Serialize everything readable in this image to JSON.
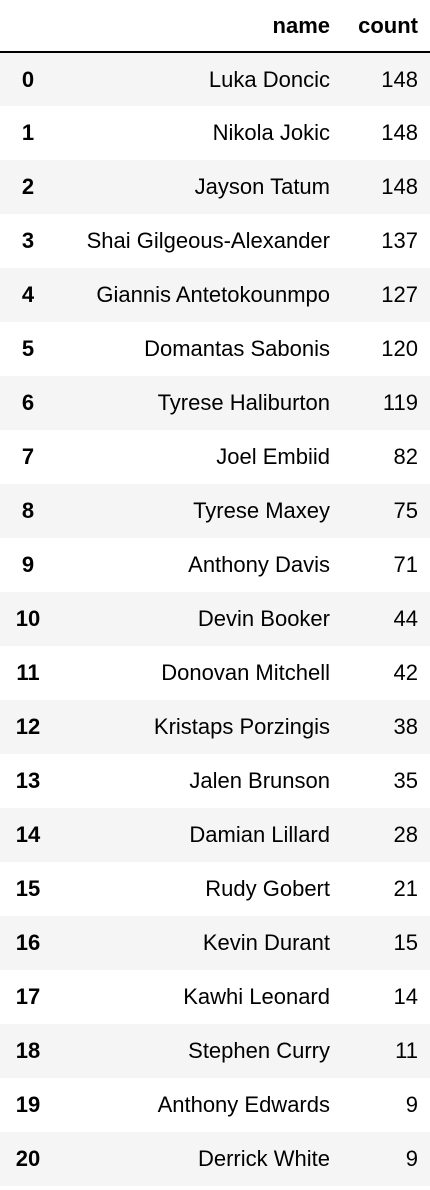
{
  "table": {
    "columns": {
      "index": "",
      "name": "name",
      "count": "count"
    },
    "rows": [
      {
        "index": "0",
        "name": "Luka Doncic",
        "count": "148"
      },
      {
        "index": "1",
        "name": "Nikola Jokic",
        "count": "148"
      },
      {
        "index": "2",
        "name": "Jayson Tatum",
        "count": "148"
      },
      {
        "index": "3",
        "name": "Shai Gilgeous-Alexander",
        "count": "137"
      },
      {
        "index": "4",
        "name": "Giannis Antetokounmpo",
        "count": "127"
      },
      {
        "index": "5",
        "name": "Domantas Sabonis",
        "count": "120"
      },
      {
        "index": "6",
        "name": "Tyrese Haliburton",
        "count": "119"
      },
      {
        "index": "7",
        "name": "Joel Embiid",
        "count": "82"
      },
      {
        "index": "8",
        "name": "Tyrese Maxey",
        "count": "75"
      },
      {
        "index": "9",
        "name": "Anthony Davis",
        "count": "71"
      },
      {
        "index": "10",
        "name": "Devin Booker",
        "count": "44"
      },
      {
        "index": "11",
        "name": "Donovan Mitchell",
        "count": "42"
      },
      {
        "index": "12",
        "name": "Kristaps Porzingis",
        "count": "38"
      },
      {
        "index": "13",
        "name": "Jalen Brunson",
        "count": "35"
      },
      {
        "index": "14",
        "name": "Damian Lillard",
        "count": "28"
      },
      {
        "index": "15",
        "name": "Rudy Gobert",
        "count": "21"
      },
      {
        "index": "16",
        "name": "Kevin Durant",
        "count": "15"
      },
      {
        "index": "17",
        "name": "Kawhi Leonard",
        "count": "14"
      },
      {
        "index": "18",
        "name": "Stephen Curry",
        "count": "11"
      },
      {
        "index": "19",
        "name": "Anthony Edwards",
        "count": "9"
      },
      {
        "index": "20",
        "name": "Derrick White",
        "count": "9"
      }
    ]
  }
}
